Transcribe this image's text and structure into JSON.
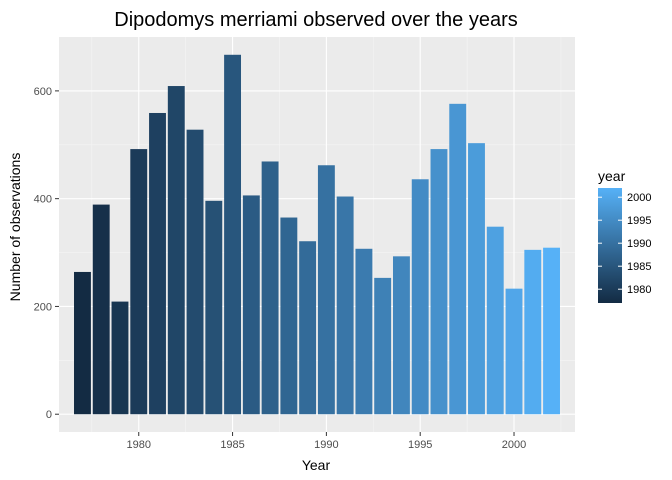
{
  "chart_data": {
    "type": "bar",
    "title": "Dipodomys merriami observed over the years",
    "xlabel": "Year",
    "ylabel": "Number of observations",
    "x": [
      1977,
      1978,
      1979,
      1980,
      1981,
      1982,
      1983,
      1984,
      1985,
      1986,
      1987,
      1988,
      1989,
      1990,
      1991,
      1992,
      1993,
      1994,
      1995,
      1996,
      1997,
      1998,
      1999,
      2000,
      2001,
      2002
    ],
    "values": [
      264,
      389,
      209,
      492,
      559,
      609,
      528,
      396,
      667,
      406,
      469,
      365,
      321,
      462,
      404,
      307,
      253,
      293,
      436,
      492,
      576,
      503,
      348,
      233,
      305,
      309
    ],
    "xlim": [
      1975.75,
      2003.25
    ],
    "ylim": [
      -33,
      700
    ],
    "x_ticks": [
      1980,
      1985,
      1990,
      1995,
      2000
    ],
    "x_tick_labels": [
      "1980",
      "1985",
      "1990",
      "1995",
      "2000"
    ],
    "y_ticks": [
      0,
      200,
      400,
      600
    ],
    "y_tick_labels": [
      "0",
      "200",
      "400",
      "600"
    ],
    "grid": true,
    "legend": {
      "title": "year",
      "position": "right",
      "ticks": [
        1980,
        1985,
        1990,
        1995,
        2000
      ],
      "tick_labels": [
        "1980",
        "1985",
        "1990",
        "1995",
        "2000"
      ],
      "range": [
        1977,
        2002
      ]
    },
    "colors": {
      "low": "#132b43",
      "high": "#56b1f7",
      "panel_background": "#ebebeb",
      "grid_major": "#ffffff",
      "grid_minor": "#f5f5f5"
    }
  }
}
